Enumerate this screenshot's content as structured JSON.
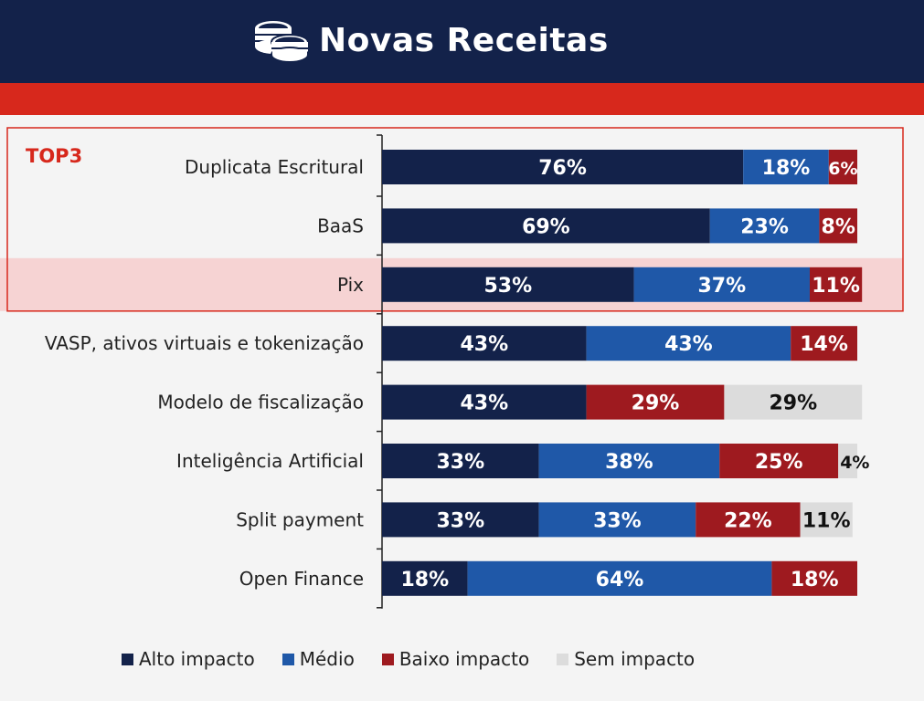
{
  "header": {
    "title": "Novas Receitas",
    "icon": "coins-icon"
  },
  "top3": {
    "label": "TOP3"
  },
  "colors": {
    "alto": "#13224a",
    "medio": "#1f58a8",
    "baixo": "#9e1a1f",
    "sem": "#dcdcdc",
    "accent_red": "#d7281c",
    "highlight": "#f6d3d3"
  },
  "chart_data": {
    "type": "bar",
    "orientation": "horizontal",
    "stacked": true,
    "percent": true,
    "categories": [
      "Duplicata Escritural",
      "BaaS",
      "Pix",
      "VASP, ativos virtuais e tokenização",
      "Modelo de fiscalização",
      "Inteligência Artificial",
      "Split payment",
      "Open Finance"
    ],
    "series": [
      {
        "name": "Alto impacto",
        "values": [
          76,
          69,
          53,
          43,
          43,
          33,
          33,
          18
        ]
      },
      {
        "name": "Médio",
        "values": [
          18,
          23,
          37,
          43,
          0,
          38,
          33,
          64
        ]
      },
      {
        "name": "Baixo impacto",
        "values": [
          6,
          8,
          11,
          14,
          29,
          25,
          22,
          18
        ]
      },
      {
        "name": "Sem impacto",
        "values": [
          0,
          0,
          0,
          0,
          29,
          4,
          11,
          0
        ]
      }
    ],
    "labels": [
      [
        "76%",
        "18%",
        "6%",
        ""
      ],
      [
        "69%",
        "23%",
        "8%",
        ""
      ],
      [
        "53%",
        "37%",
        "11%",
        ""
      ],
      [
        "43%",
        "43%",
        "14%",
        ""
      ],
      [
        "43%",
        "",
        "29%",
        "29%"
      ],
      [
        "33%",
        "38%",
        "25%",
        "4%"
      ],
      [
        "33%",
        "33%",
        "22%",
        "11%"
      ],
      [
        "18%",
        "64%",
        "18%",
        ""
      ]
    ],
    "legend_position": "bottom",
    "highlighted_category": "Pix",
    "grid": false
  }
}
